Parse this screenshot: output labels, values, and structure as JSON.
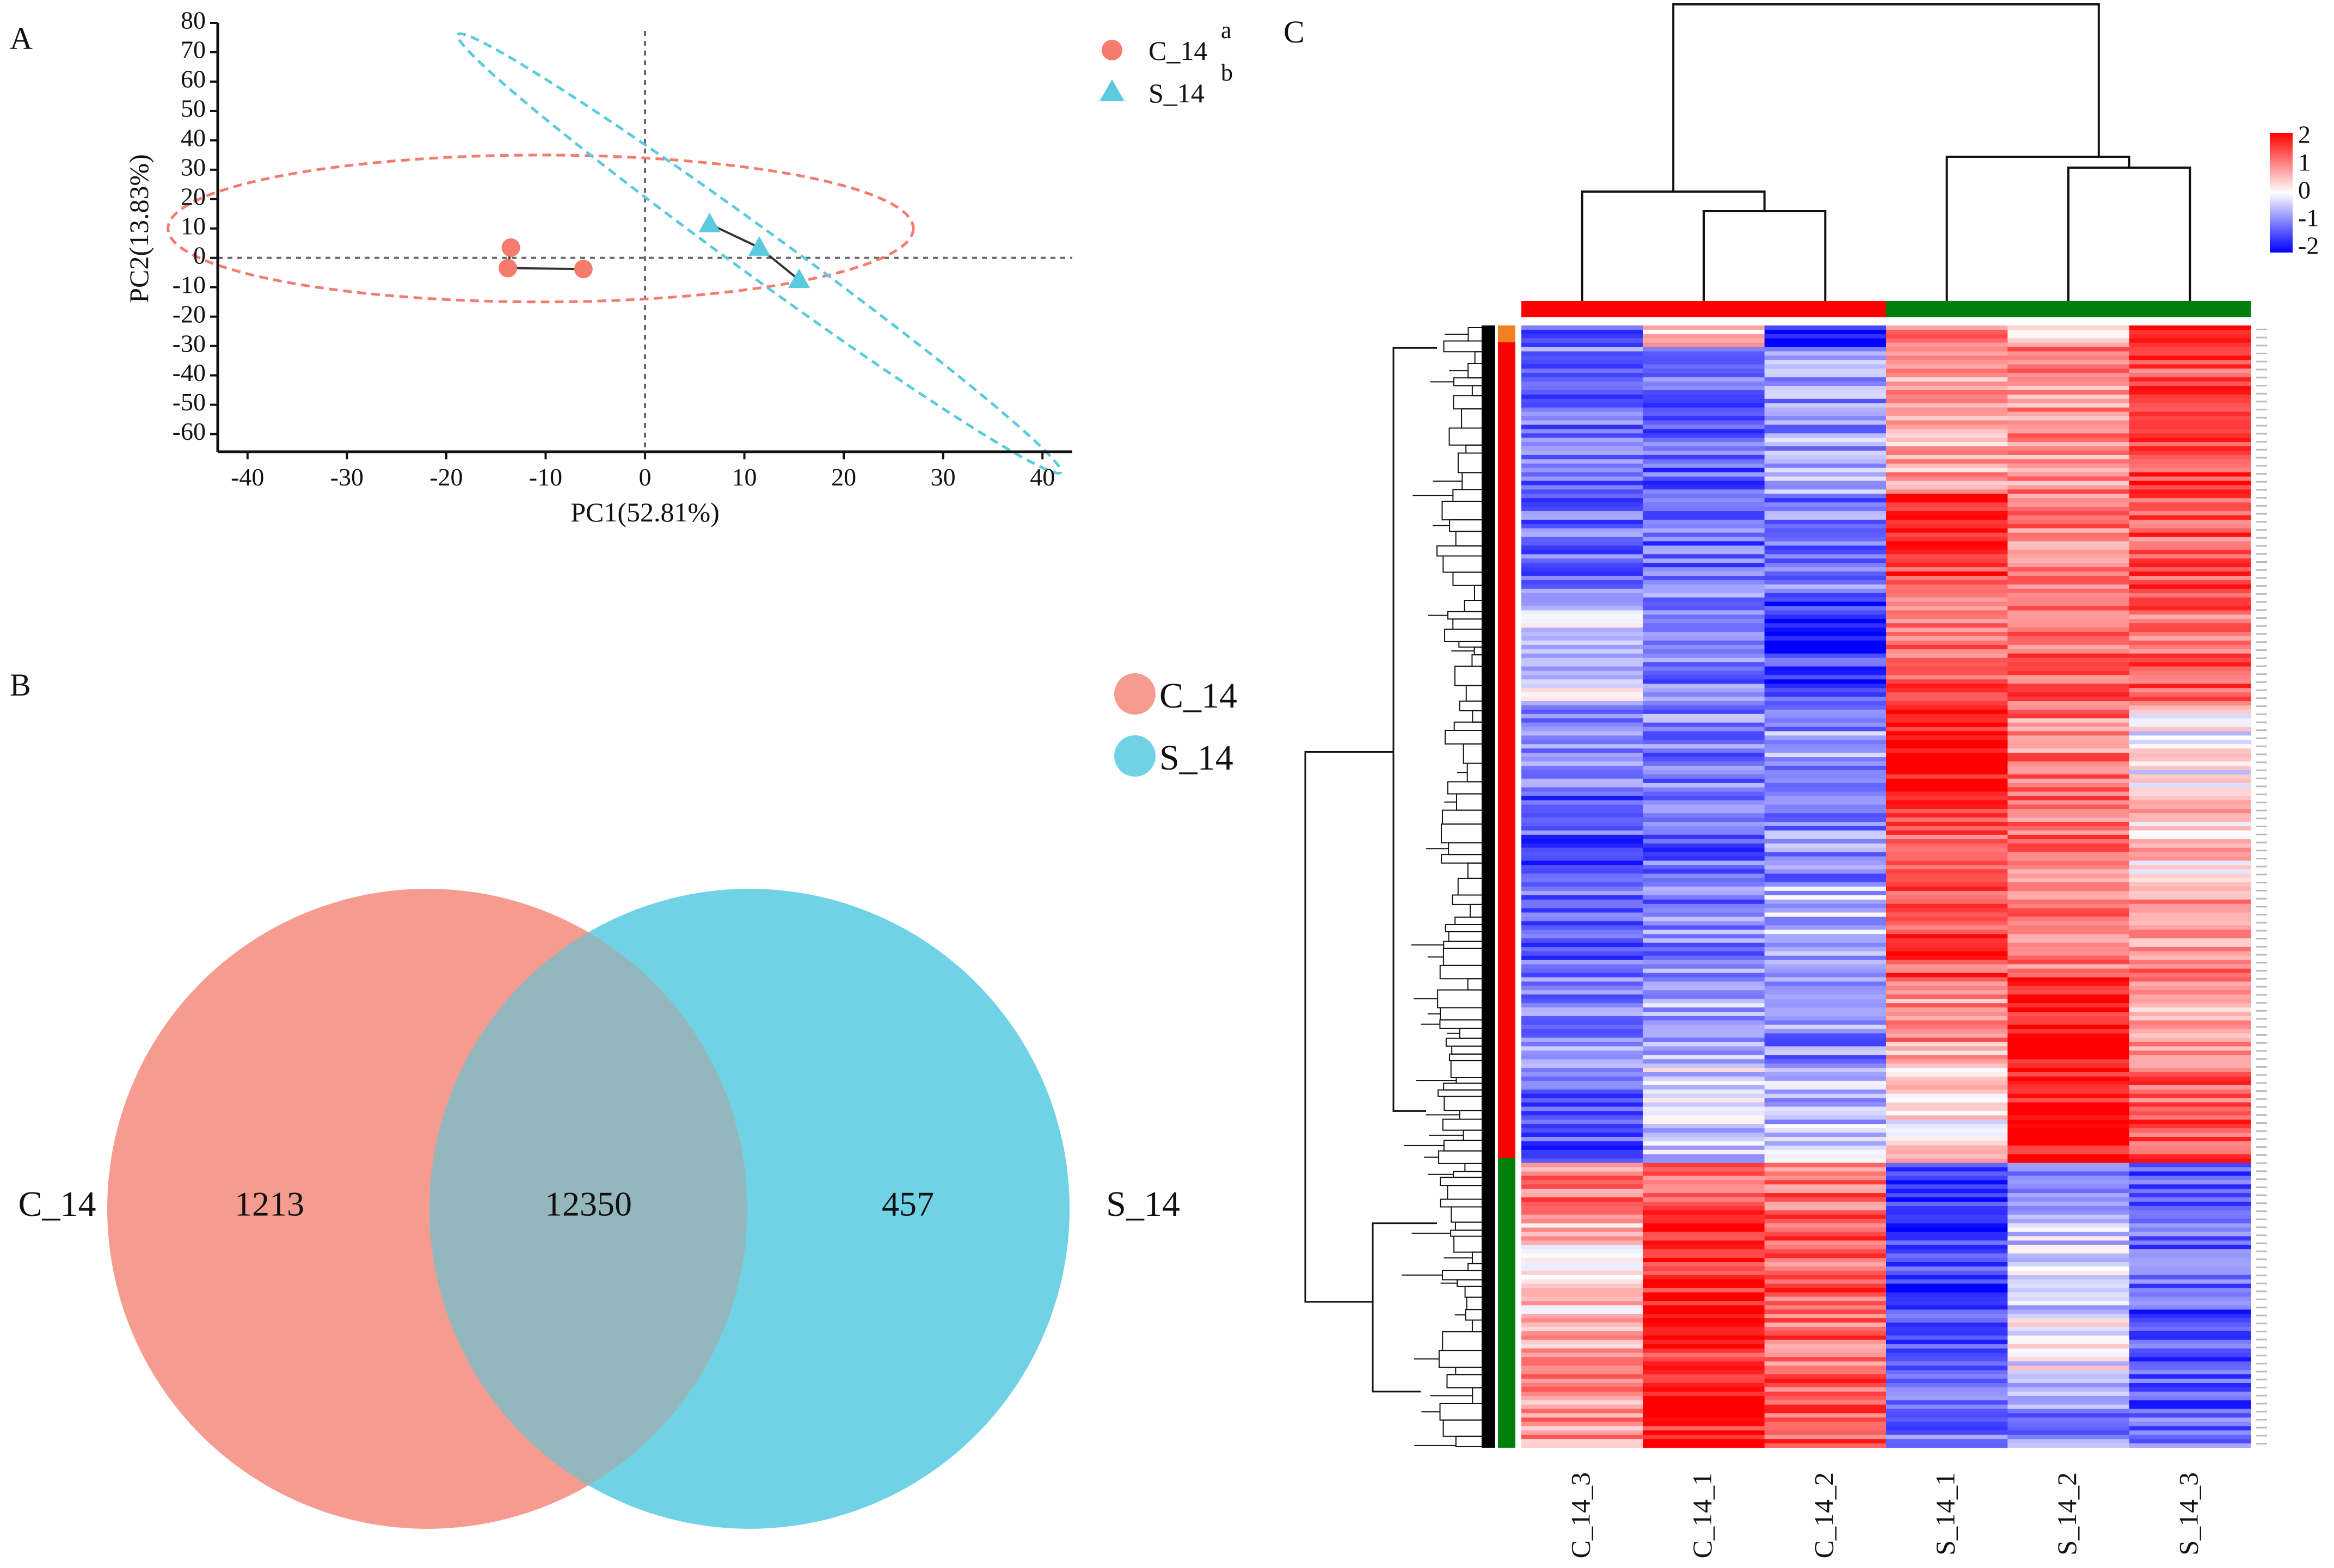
{
  "panels": {
    "a": "A",
    "b": "B",
    "c": "C"
  },
  "colors": {
    "c14": "#f47b6e",
    "s14": "#5bc9de",
    "c14_venn": "#f69b8f",
    "s14_venn": "#6fd3e5",
    "overlap": "#93b7bd",
    "heat_high": "#ff0000",
    "heat_mid": "#ffffff",
    "heat_low": "#0000ff",
    "group_c": "#ff0000",
    "group_s": "#007f0e",
    "cluster_up": "#ff0000",
    "cluster_down": "#007f0e",
    "cluster_small": "#f08020"
  },
  "chart_data": [
    {
      "type": "scatter",
      "title": "",
      "xlabel": "PC1(52.81%)",
      "ylabel": "PC2(13.83%)",
      "xlim": [
        -43,
        43
      ],
      "ylim": [
        -66,
        80
      ],
      "xticks": [
        -40,
        -30,
        -20,
        -10,
        0,
        10,
        20,
        30,
        40
      ],
      "yticks": [
        80,
        70,
        60,
        50,
        40,
        30,
        20,
        10,
        0,
        -10,
        -20,
        -30,
        -40,
        -50,
        -60
      ],
      "series": [
        {
          "name": "C_14",
          "marker": "circle",
          "superscript": "a",
          "x": [
            -13.5,
            -13.8,
            -6.2
          ],
          "y": [
            3.5,
            -3.5,
            -3.8
          ],
          "ellipse": {
            "cx": -10.5,
            "cy": 10,
            "rx": 37.5,
            "ry": 25,
            "angle": 0
          }
        },
        {
          "name": "S_14",
          "marker": "triangle",
          "superscript": "b",
          "x": [
            6.5,
            11.5,
            15.5
          ],
          "y": [
            11.5,
            3.5,
            -7.5
          ],
          "ellipse": {
            "cx": 11.5,
            "cy": 1.5,
            "rx": 37.5,
            "ry": 7.8,
            "angle": 36
          }
        }
      ],
      "legend": "top-right"
    },
    {
      "type": "venn",
      "sets": [
        "C_14",
        "S_14"
      ],
      "values": {
        "only_a": "1213",
        "both": "12350",
        "only_b": "457"
      },
      "set_labels": {
        "left": "C_14",
        "right": "S_14"
      },
      "legend": [
        "C_14",
        "S_14"
      ]
    },
    {
      "type": "heatmap",
      "columns": [
        "C_14_3",
        "C_14_1",
        "C_14_2",
        "S_14_1",
        "S_14_2",
        "S_14_3"
      ],
      "column_groups": [
        "C",
        "C",
        "C",
        "S",
        "S",
        "S"
      ],
      "colorbar": {
        "ticks": [
          "2",
          "1",
          "0",
          "-1",
          "-2"
        ],
        "range": [
          -2,
          2
        ]
      },
      "clusters": [
        {
          "name": "small",
          "fraction": 0.015
        },
        {
          "name": "up_in_S",
          "fraction": 0.727
        },
        {
          "name": "down_in_S",
          "fraction": 0.258
        }
      ],
      "cluster_profiles": [
        [
          -1.2,
          0.4,
          -2.0,
          1.0,
          0.7,
          2.0
        ],
        [
          -1.1,
          -1.2,
          -1.0,
          1.3,
          1.2,
          1.1
        ],
        [
          1.0,
          1.6,
          1.2,
          -1.5,
          -0.5,
          -1.3
        ]
      ],
      "band_profiles": [
        {
          "start": 0.0,
          "end": 0.02,
          "v": [
            -1.5,
            0.4,
            -2.0,
            1.0,
            0.6,
            2.0
          ]
        },
        {
          "start": 0.02,
          "end": 0.15,
          "v": [
            -1.1,
            -1.3,
            -0.8,
            0.6,
            0.9,
            1.4
          ]
        },
        {
          "start": 0.15,
          "end": 0.24,
          "v": [
            -1.2,
            -1.2,
            -1.0,
            1.6,
            1.0,
            1.3
          ]
        },
        {
          "start": 0.24,
          "end": 0.34,
          "v": [
            -0.3,
            -1.1,
            -1.6,
            1.2,
            1.2,
            1.2
          ]
        },
        {
          "start": 0.34,
          "end": 0.42,
          "v": [
            -1.1,
            -1.0,
            -0.8,
            2.0,
            1.0,
            0.0
          ]
        },
        {
          "start": 0.42,
          "end": 0.5,
          "v": [
            -1.3,
            -1.2,
            -0.9,
            1.3,
            1.1,
            0.4
          ]
        },
        {
          "start": 0.5,
          "end": 0.58,
          "v": [
            -1.2,
            -1.0,
            -0.5,
            1.4,
            0.9,
            0.9
          ]
        },
        {
          "start": 0.58,
          "end": 0.66,
          "v": [
            -1.0,
            -0.6,
            -0.9,
            0.8,
            1.9,
            0.7
          ]
        },
        {
          "start": 0.66,
          "end": 0.745,
          "v": [
            -1.3,
            -0.3,
            -0.5,
            0.2,
            1.9,
            1.3
          ]
        },
        {
          "start": 0.745,
          "end": 0.8,
          "v": [
            1.0,
            1.3,
            1.2,
            -1.5,
            -0.8,
            -1.2
          ]
        },
        {
          "start": 0.8,
          "end": 0.88,
          "v": [
            0.4,
            1.8,
            1.3,
            -1.6,
            -0.3,
            -1.3
          ]
        },
        {
          "start": 0.88,
          "end": 0.94,
          "v": [
            0.8,
            1.6,
            1.2,
            -1.3,
            -0.1,
            -1.4
          ]
        },
        {
          "start": 0.94,
          "end": 1.0,
          "v": [
            0.9,
            1.8,
            1.3,
            -1.0,
            -0.9,
            -1.3
          ]
        }
      ]
    }
  ]
}
